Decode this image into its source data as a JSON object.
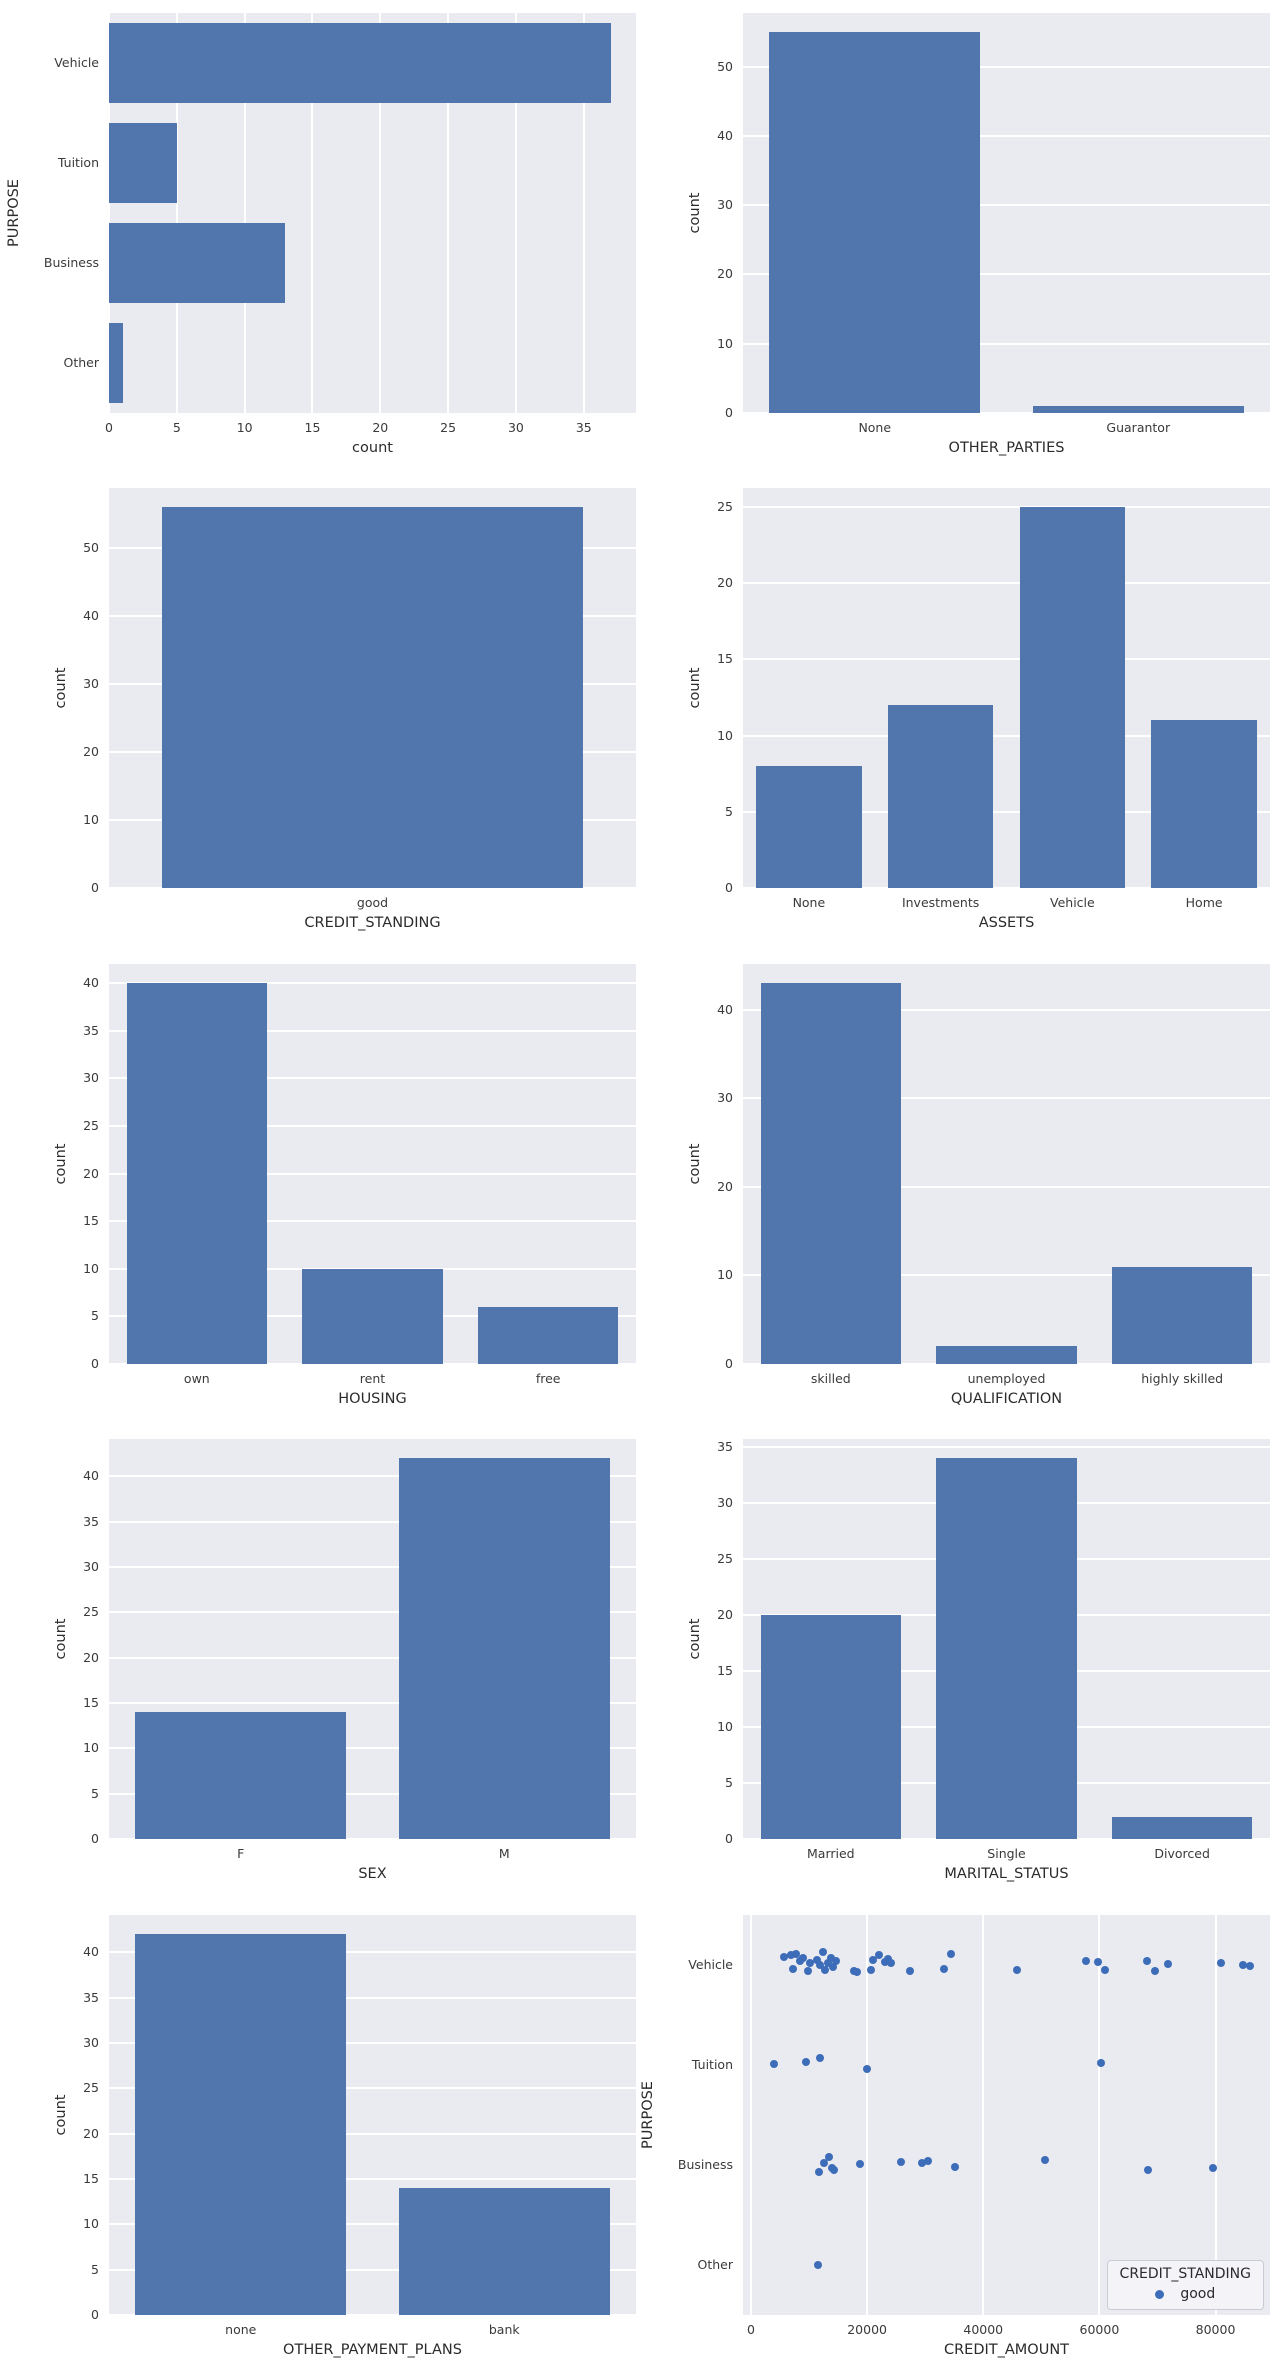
{
  "style": {
    "axes_bg": "#eaeaf1",
    "bar_color": "#5176ad",
    "dot_color": "#3d6db8",
    "grid_color": "#ffffff",
    "text_color": "#2b2b2b",
    "tick_color": "#3a3a3a",
    "legend_bg": "#f3f3f8",
    "legend_border": "#cbcbd6"
  },
  "chart_data": [
    {
      "type": "barh",
      "title": "",
      "xlabel": "count",
      "ylabel": "PURPOSE",
      "categories": [
        "Vehicle",
        "Tuition",
        "Business",
        "Other"
      ],
      "values": [
        37,
        5,
        13,
        1
      ],
      "xlim": [
        0,
        38.85
      ],
      "xticks": [
        0,
        5,
        10,
        15,
        20,
        25,
        30,
        35
      ],
      "grid": true,
      "legend_position": "none"
    },
    {
      "type": "bar",
      "title": "",
      "xlabel": "OTHER_PARTIES",
      "ylabel": "count",
      "categories": [
        "None",
        "Guarantor"
      ],
      "values": [
        55,
        1
      ],
      "ylim": [
        0,
        57.75
      ],
      "yticks": [
        0,
        10,
        20,
        30,
        40,
        50
      ],
      "grid": true,
      "legend_position": "none"
    },
    {
      "type": "bar",
      "title": "",
      "xlabel": "CREDIT_STANDING",
      "ylabel": "count",
      "categories": [
        "good"
      ],
      "values": [
        56
      ],
      "ylim": [
        0,
        58.8
      ],
      "yticks": [
        0,
        10,
        20,
        30,
        40,
        50
      ],
      "grid": true,
      "legend_position": "none"
    },
    {
      "type": "bar",
      "title": "",
      "xlabel": "ASSETS",
      "ylabel": "count",
      "categories": [
        "None",
        "Investments",
        "Vehicle",
        "Home"
      ],
      "values": [
        8,
        12,
        25,
        11
      ],
      "ylim": [
        0,
        26.25
      ],
      "yticks": [
        0,
        5,
        10,
        15,
        20,
        25
      ],
      "grid": true,
      "legend_position": "none"
    },
    {
      "type": "bar",
      "title": "",
      "xlabel": "HOUSING",
      "ylabel": "count",
      "categories": [
        "own",
        "rent",
        "free"
      ],
      "values": [
        40,
        10,
        6
      ],
      "ylim": [
        0,
        42
      ],
      "yticks": [
        0,
        5,
        10,
        15,
        20,
        25,
        30,
        35,
        40
      ],
      "grid": true,
      "legend_position": "none"
    },
    {
      "type": "bar",
      "title": "",
      "xlabel": "QUALIFICATION",
      "ylabel": "count",
      "categories": [
        "skilled",
        "unemployed",
        "highly skilled"
      ],
      "values": [
        43,
        2,
        11
      ],
      "ylim": [
        0,
        45.15
      ],
      "yticks": [
        0,
        10,
        20,
        30,
        40
      ],
      "grid": true,
      "legend_position": "none"
    },
    {
      "type": "bar",
      "title": "",
      "xlabel": "SEX",
      "ylabel": "count",
      "categories": [
        "F",
        "M"
      ],
      "values": [
        14,
        42
      ],
      "ylim": [
        0,
        44.1
      ],
      "yticks": [
        0,
        5,
        10,
        15,
        20,
        25,
        30,
        35,
        40
      ],
      "grid": true,
      "legend_position": "none"
    },
    {
      "type": "bar",
      "title": "",
      "xlabel": "MARITAL_STATUS",
      "ylabel": "count",
      "categories": [
        "Married",
        "Single",
        "Divorced"
      ],
      "values": [
        20,
        34,
        2
      ],
      "ylim": [
        0,
        35.7
      ],
      "yticks": [
        0,
        5,
        10,
        15,
        20,
        25,
        30,
        35
      ],
      "grid": true,
      "legend_position": "none"
    },
    {
      "type": "bar",
      "title": "",
      "xlabel": "OTHER_PAYMENT_PLANS",
      "ylabel": "count",
      "categories": [
        "none",
        "bank"
      ],
      "values": [
        42,
        14
      ],
      "ylim": [
        0,
        44.1
      ],
      "yticks": [
        0,
        5,
        10,
        15,
        20,
        25,
        30,
        35,
        40
      ],
      "grid": true,
      "legend_position": "none"
    },
    {
      "type": "scatter",
      "title": "",
      "xlabel": "CREDIT_AMOUNT",
      "ylabel": "PURPOSE",
      "categories": [
        "Vehicle",
        "Tuition",
        "Business",
        "Other"
      ],
      "xlim": [
        0,
        88000
      ],
      "xticks": [
        0,
        20000,
        40000,
        60000,
        80000
      ],
      "grid": true,
      "legend_position": "lower right",
      "legend": {
        "title": "CREDIT_STANDING",
        "entries": [
          "good"
        ]
      },
      "points": {
        "Vehicle": [
          [
            5600,
            -8
          ],
          [
            6900,
            -10
          ],
          [
            7200,
            4
          ],
          [
            7800,
            -11
          ],
          [
            8400,
            -4
          ],
          [
            9000,
            -7
          ],
          [
            9900,
            6
          ],
          [
            10200,
            -2
          ],
          [
            11300,
            -5
          ],
          [
            11800,
            0
          ],
          [
            12400,
            -13
          ],
          [
            12800,
            5
          ],
          [
            13200,
            -2
          ],
          [
            13800,
            -7
          ],
          [
            14100,
            2
          ],
          [
            14600,
            -4
          ],
          [
            17800,
            6
          ],
          [
            18300,
            7
          ],
          [
            20600,
            5
          ],
          [
            21000,
            -5
          ],
          [
            22100,
            -10
          ],
          [
            23000,
            -3
          ],
          [
            23600,
            -6
          ],
          [
            24100,
            -2
          ],
          [
            27400,
            6
          ],
          [
            33200,
            4
          ],
          [
            34500,
            -11
          ],
          [
            45800,
            5
          ],
          [
            57700,
            -4
          ],
          [
            59800,
            -3
          ],
          [
            60900,
            5
          ],
          [
            68200,
            -4
          ],
          [
            69500,
            6
          ],
          [
            71800,
            -1
          ],
          [
            81000,
            -2
          ],
          [
            84800,
            0
          ],
          [
            86000,
            1
          ]
        ],
        "Tuition": [
          [
            4000,
            -1
          ],
          [
            9400,
            -3
          ],
          [
            11900,
            -7
          ],
          [
            19900,
            4
          ],
          [
            60200,
            -2
          ]
        ],
        "Business": [
          [
            11700,
            7
          ],
          [
            12600,
            -2
          ],
          [
            13500,
            -8
          ],
          [
            13900,
            3
          ],
          [
            14300,
            5
          ],
          [
            18800,
            -1
          ],
          [
            25900,
            -3
          ],
          [
            29400,
            -2
          ],
          [
            30500,
            -4
          ],
          [
            35200,
            2
          ],
          [
            50600,
            -5
          ],
          [
            68300,
            5
          ],
          [
            79500,
            3
          ]
        ],
        "Other": [
          [
            11600,
            0
          ]
        ]
      }
    }
  ]
}
